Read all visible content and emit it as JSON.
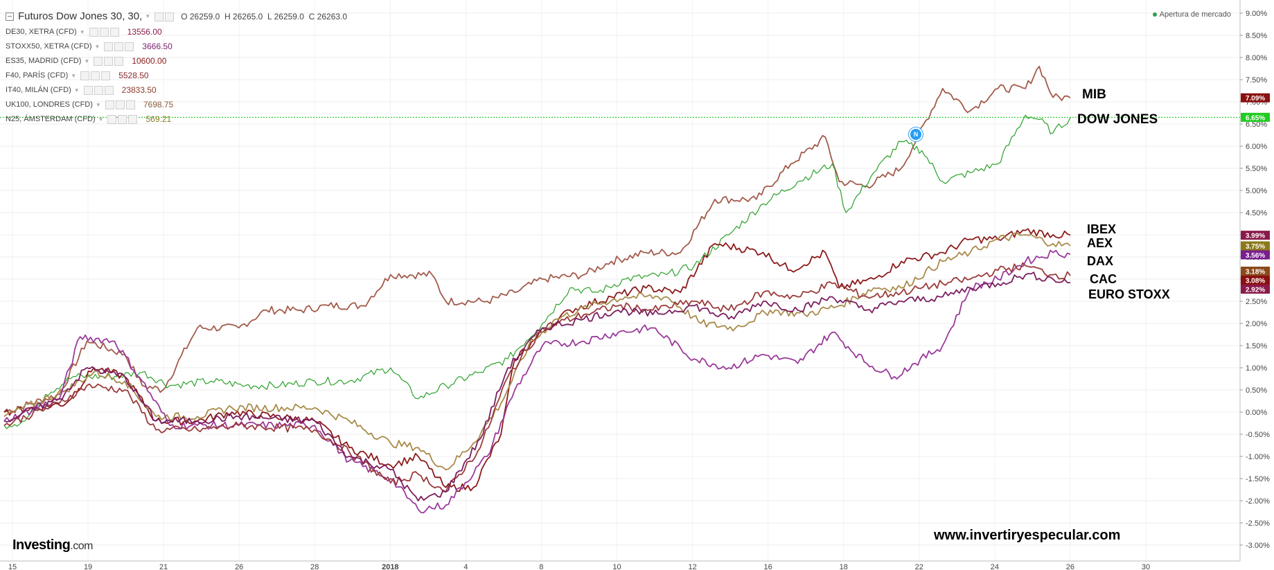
{
  "header": {
    "title": "Futuros Dow Jones 30, 30,",
    "ohlc": {
      "open_label": "O",
      "open": "26259.0",
      "high_label": "H",
      "high": "26265.0",
      "low_label": "L",
      "low": "26259.0",
      "close_label": "C",
      "close": "26263.0"
    },
    "status": "Apertura de mercado"
  },
  "legend": [
    {
      "label": "DE30, XETRA (CFD)",
      "value": "13556.00",
      "color": "#8b1a4a"
    },
    {
      "label": "STOXX50, XETRA (CFD)",
      "value": "3666.50",
      "color": "#7a1e6e"
    },
    {
      "label": "ES35, MADRID (CFD)",
      "value": "10600.00",
      "color": "#8b1a1a"
    },
    {
      "label": "F40, PARÍS (CFD)",
      "value": "5528.50",
      "color": "#8b2a2a"
    },
    {
      "label": "IT40, MILÁN (CFD)",
      "value": "23833.50",
      "color": "#8b3a2a"
    },
    {
      "label": "UK100, LONDRES (CFD)",
      "value": "7698.75",
      "color": "#8b5a3a"
    },
    {
      "label": "N25, ÁMSTERDAM (CFD)",
      "value": "569.21",
      "color": "#8b7a2a"
    }
  ],
  "annotations": {
    "mib": "MIB",
    "dow": "DOW JONES",
    "ibex": "IBEX",
    "aex": "AEX",
    "dax": "DAX",
    "cac": "CAC",
    "euro": "EURO STOXX"
  },
  "watermark": "www.invertiryespecular.com",
  "brand": {
    "name": "Investing",
    "suffix": ".com"
  },
  "news_badge": "N",
  "chart_data": {
    "type": "line",
    "y_axis": {
      "min": -3.0,
      "max": 9.0,
      "step": 0.5,
      "unit": "%",
      "side": "right"
    },
    "x_ticks": [
      "15",
      "19",
      "21",
      "26",
      "28",
      "2018",
      "4",
      "8",
      "10",
      "12",
      "16",
      "18",
      "22",
      "24",
      "26",
      "30"
    ],
    "grid": true,
    "reference_line": {
      "value": 6.65,
      "color": "#00c800"
    },
    "last_value_labels": [
      {
        "text": "7.09%",
        "value": 7.09,
        "color": "#8b1010"
      },
      {
        "text": "6.65%",
        "value": 6.65,
        "color": "#22cc22"
      },
      {
        "text": "3.99%",
        "value": 3.99,
        "color": "#8b1a4a"
      },
      {
        "text": "3.75%",
        "value": 3.75,
        "color": "#8b7a1a"
      },
      {
        "text": "3.56%",
        "value": 3.56,
        "color": "#7a1e8e"
      },
      {
        "text": "3.18%",
        "value": 3.18,
        "color": "#8b4a1a"
      },
      {
        "text": "3.08%",
        "value": 3.08,
        "color": "#8b1010"
      },
      {
        "text": "2.92%",
        "value": 2.92,
        "color": "#8b1a4a"
      }
    ],
    "series": [
      {
        "key": "mib",
        "color": "#a25a4a",
        "points": [
          [
            0,
            0
          ],
          [
            80,
            0.4
          ],
          [
            120,
            1.6
          ],
          [
            175,
            1.3
          ],
          [
            200,
            0.6
          ],
          [
            230,
            0.5
          ],
          [
            280,
            1.9
          ],
          [
            340,
            1.9
          ],
          [
            380,
            2.3
          ],
          [
            430,
            2.3
          ],
          [
            470,
            2.4
          ],
          [
            520,
            2.4
          ],
          [
            560,
            3.1
          ],
          [
            620,
            3.1
          ],
          [
            640,
            2.5
          ],
          [
            700,
            2.5
          ],
          [
            740,
            2.7
          ],
          [
            780,
            3.0
          ],
          [
            840,
            3.1
          ],
          [
            880,
            3.4
          ],
          [
            930,
            3.6
          ],
          [
            980,
            3.6
          ],
          [
            1030,
            4.8
          ],
          [
            1090,
            4.8
          ],
          [
            1140,
            5.6
          ],
          [
            1190,
            6.2
          ],
          [
            1210,
            5.2
          ],
          [
            1250,
            5.1
          ],
          [
            1300,
            5.5
          ],
          [
            1360,
            7.3
          ],
          [
            1400,
            6.8
          ],
          [
            1440,
            7.3
          ],
          [
            1480,
            7.3
          ],
          [
            1500,
            7.8
          ],
          [
            1520,
            7.1
          ],
          [
            1545,
            7.09
          ]
        ]
      },
      {
        "key": "dow",
        "color": "#2aa02a",
        "points": [
          [
            0,
            -0.3
          ],
          [
            30,
            -0.2
          ],
          [
            60,
            0.4
          ],
          [
            100,
            0.8
          ],
          [
            160,
            0.8
          ],
          [
            200,
            0.9
          ],
          [
            240,
            0.6
          ],
          [
            300,
            0.7
          ],
          [
            350,
            0.6
          ],
          [
            400,
            0.6
          ],
          [
            450,
            0.7
          ],
          [
            500,
            0.7
          ],
          [
            560,
            1.0
          ],
          [
            600,
            0.3
          ],
          [
            640,
            0.6
          ],
          [
            690,
            0.9
          ],
          [
            730,
            1.2
          ],
          [
            780,
            2.0
          ],
          [
            820,
            2.8
          ],
          [
            860,
            2.7
          ],
          [
            900,
            3.0
          ],
          [
            960,
            3.1
          ],
          [
            1000,
            3.3
          ],
          [
            1050,
            4.0
          ],
          [
            1100,
            4.7
          ],
          [
            1150,
            5.2
          ],
          [
            1200,
            5.6
          ],
          [
            1220,
            4.5
          ],
          [
            1260,
            5.4
          ],
          [
            1300,
            6.1
          ],
          [
            1330,
            5.9
          ],
          [
            1360,
            5.2
          ],
          [
            1400,
            5.4
          ],
          [
            1440,
            5.6
          ],
          [
            1480,
            6.7
          ],
          [
            1500,
            6.6
          ],
          [
            1520,
            6.3
          ],
          [
            1545,
            6.65
          ]
        ]
      },
      {
        "key": "ibex",
        "color": "#8b1a1a",
        "points": [
          [
            0,
            0
          ],
          [
            90,
            0.2
          ],
          [
            130,
            1.0
          ],
          [
            175,
            0.8
          ],
          [
            220,
            -0.2
          ],
          [
            280,
            -0.2
          ],
          [
            330,
            0
          ],
          [
            450,
            -0.2
          ],
          [
            500,
            -0.8
          ],
          [
            560,
            -1.2
          ],
          [
            600,
            -1.0
          ],
          [
            640,
            -1.7
          ],
          [
            680,
            -1.7
          ],
          [
            720,
            -0.5
          ],
          [
            740,
            1.2
          ],
          [
            780,
            1.8
          ],
          [
            820,
            2.3
          ],
          [
            880,
            2.6
          ],
          [
            930,
            2.8
          ],
          [
            980,
            2.7
          ],
          [
            1030,
            3.8
          ],
          [
            1100,
            3.6
          ],
          [
            1140,
            3.2
          ],
          [
            1190,
            3.6
          ],
          [
            1210,
            2.8
          ],
          [
            1260,
            3.0
          ],
          [
            1300,
            3.4
          ],
          [
            1360,
            3.6
          ],
          [
            1400,
            3.9
          ],
          [
            1440,
            3.9
          ],
          [
            1480,
            4.1
          ],
          [
            1520,
            4.0
          ],
          [
            1545,
            3.99
          ]
        ]
      },
      {
        "key": "aex",
        "color": "#a88a4a",
        "points": [
          [
            0,
            -0.1
          ],
          [
            90,
            0.5
          ],
          [
            130,
            0.9
          ],
          [
            175,
            0.7
          ],
          [
            220,
            -0.1
          ],
          [
            280,
            -0.1
          ],
          [
            330,
            0.1
          ],
          [
            450,
            0.1
          ],
          [
            500,
            -0.2
          ],
          [
            560,
            -0.7
          ],
          [
            600,
            -0.8
          ],
          [
            640,
            -1.3
          ],
          [
            680,
            -0.7
          ],
          [
            720,
            0.2
          ],
          [
            760,
            1.5
          ],
          [
            800,
            2.1
          ],
          [
            850,
            2.4
          ],
          [
            900,
            2.6
          ],
          [
            960,
            2.6
          ],
          [
            1010,
            2.0
          ],
          [
            1060,
            1.9
          ],
          [
            1110,
            2.3
          ],
          [
            1160,
            2.2
          ],
          [
            1210,
            2.4
          ],
          [
            1260,
            2.8
          ],
          [
            1300,
            2.8
          ],
          [
            1360,
            3.4
          ],
          [
            1400,
            3.6
          ],
          [
            1440,
            3.9
          ],
          [
            1480,
            4.0
          ],
          [
            1520,
            3.8
          ],
          [
            1545,
            3.75
          ]
        ]
      },
      {
        "key": "dax",
        "color": "#9a3a9a",
        "points": [
          [
            0,
            -0.2
          ],
          [
            80,
            0.3
          ],
          [
            110,
            1.7
          ],
          [
            160,
            1.6
          ],
          [
            200,
            0.7
          ],
          [
            240,
            -0.3
          ],
          [
            280,
            -0.3
          ],
          [
            340,
            -0.3
          ],
          [
            450,
            -0.3
          ],
          [
            500,
            -1.1
          ],
          [
            560,
            -1.5
          ],
          [
            600,
            -2.2
          ],
          [
            640,
            -2.1
          ],
          [
            700,
            -1.0
          ],
          [
            740,
            0.5
          ],
          [
            780,
            1.5
          ],
          [
            840,
            1.6
          ],
          [
            890,
            1.8
          ],
          [
            940,
            1.9
          ],
          [
            1000,
            1.2
          ],
          [
            1050,
            1.0
          ],
          [
            1100,
            1.3
          ],
          [
            1150,
            1.1
          ],
          [
            1200,
            1.8
          ],
          [
            1250,
            1.1
          ],
          [
            1290,
            0.8
          ],
          [
            1320,
            1.1
          ],
          [
            1360,
            1.5
          ],
          [
            1400,
            2.8
          ],
          [
            1440,
            3.0
          ],
          [
            1480,
            3.4
          ],
          [
            1520,
            3.6
          ],
          [
            1545,
            3.56
          ]
        ]
      },
      {
        "key": "cac",
        "color": "#9a3a3a",
        "points": [
          [
            0,
            -0.3
          ],
          [
            80,
            0.2
          ],
          [
            120,
            0.6
          ],
          [
            175,
            0.5
          ],
          [
            220,
            -0.4
          ],
          [
            280,
            -0.4
          ],
          [
            340,
            -0.3
          ],
          [
            450,
            -0.4
          ],
          [
            500,
            -0.9
          ],
          [
            560,
            -1.6
          ],
          [
            600,
            -1.4
          ],
          [
            640,
            -1.8
          ],
          [
            690,
            -0.8
          ],
          [
            730,
            0.8
          ],
          [
            780,
            1.9
          ],
          [
            840,
            2.2
          ],
          [
            890,
            2.4
          ],
          [
            940,
            2.3
          ],
          [
            1000,
            2.5
          ],
          [
            1050,
            2.3
          ],
          [
            1100,
            2.7
          ],
          [
            1150,
            2.6
          ],
          [
            1200,
            2.9
          ],
          [
            1250,
            2.6
          ],
          [
            1300,
            2.7
          ],
          [
            1360,
            2.9
          ],
          [
            1400,
            3.0
          ],
          [
            1440,
            3.2
          ],
          [
            1480,
            3.3
          ],
          [
            1520,
            3.1
          ],
          [
            1545,
            3.08
          ]
        ]
      },
      {
        "key": "euro",
        "color": "#7a1e5e",
        "points": [
          [
            0,
            -0.2
          ],
          [
            80,
            0.3
          ],
          [
            120,
            1.0
          ],
          [
            175,
            0.8
          ],
          [
            220,
            -0.2
          ],
          [
            280,
            -0.2
          ],
          [
            340,
            -0.1
          ],
          [
            450,
            -0.2
          ],
          [
            500,
            -1.0
          ],
          [
            560,
            -1.3
          ],
          [
            600,
            -2.0
          ],
          [
            640,
            -1.8
          ],
          [
            690,
            -0.6
          ],
          [
            730,
            1.0
          ],
          [
            780,
            1.9
          ],
          [
            840,
            2.1
          ],
          [
            890,
            2.3
          ],
          [
            940,
            2.2
          ],
          [
            1000,
            2.4
          ],
          [
            1050,
            2.1
          ],
          [
            1100,
            2.5
          ],
          [
            1150,
            2.3
          ],
          [
            1200,
            2.6
          ],
          [
            1250,
            2.3
          ],
          [
            1300,
            2.5
          ],
          [
            1360,
            2.6
          ],
          [
            1400,
            2.8
          ],
          [
            1440,
            2.9
          ],
          [
            1480,
            3.1
          ],
          [
            1520,
            3.0
          ],
          [
            1545,
            2.92
          ]
        ]
      }
    ]
  }
}
